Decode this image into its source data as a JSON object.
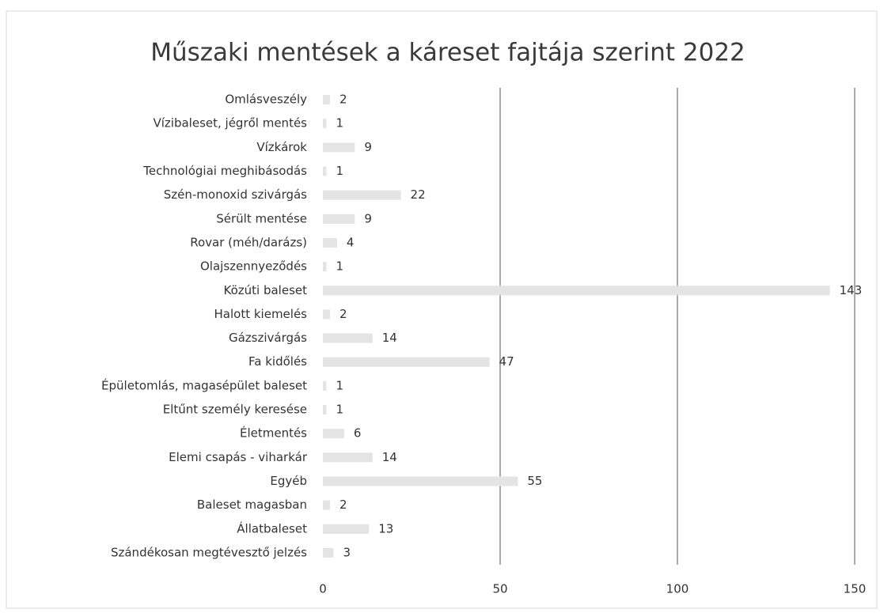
{
  "chart_data": {
    "type": "bar",
    "orientation": "horizontal",
    "title": "Műszaki mentések a káreset fajtája szerint  2022",
    "categories": [
      "Omlásveszély",
      "Vízibaleset, jégről mentés",
      "Vízkárok",
      "Technológiai meghibásodás",
      "Szén-monoxid szivárgás",
      "Sérült mentése",
      "Rovar (méh/darázs)",
      "Olajszennyeződés",
      "Közúti baleset",
      "Halott kiemelés",
      "Gázszivárgás",
      "Fa kidőlés",
      "Épületomlás, magasépület baleset",
      "Eltűnt személy keresése",
      "Életmentés",
      "Elemi csapás - viharkár",
      "Egyéb",
      "Baleset magasban",
      "Állatbaleset",
      "Szándékosan megtévesztő jelzés"
    ],
    "values": [
      2,
      1,
      9,
      1,
      22,
      9,
      4,
      1,
      143,
      2,
      14,
      47,
      1,
      1,
      6,
      14,
      55,
      2,
      13,
      3
    ],
    "color": "#e4e4e4",
    "xlim": [
      0,
      150
    ],
    "xticks": [
      0,
      50,
      100,
      150
    ],
    "grid": true
  }
}
